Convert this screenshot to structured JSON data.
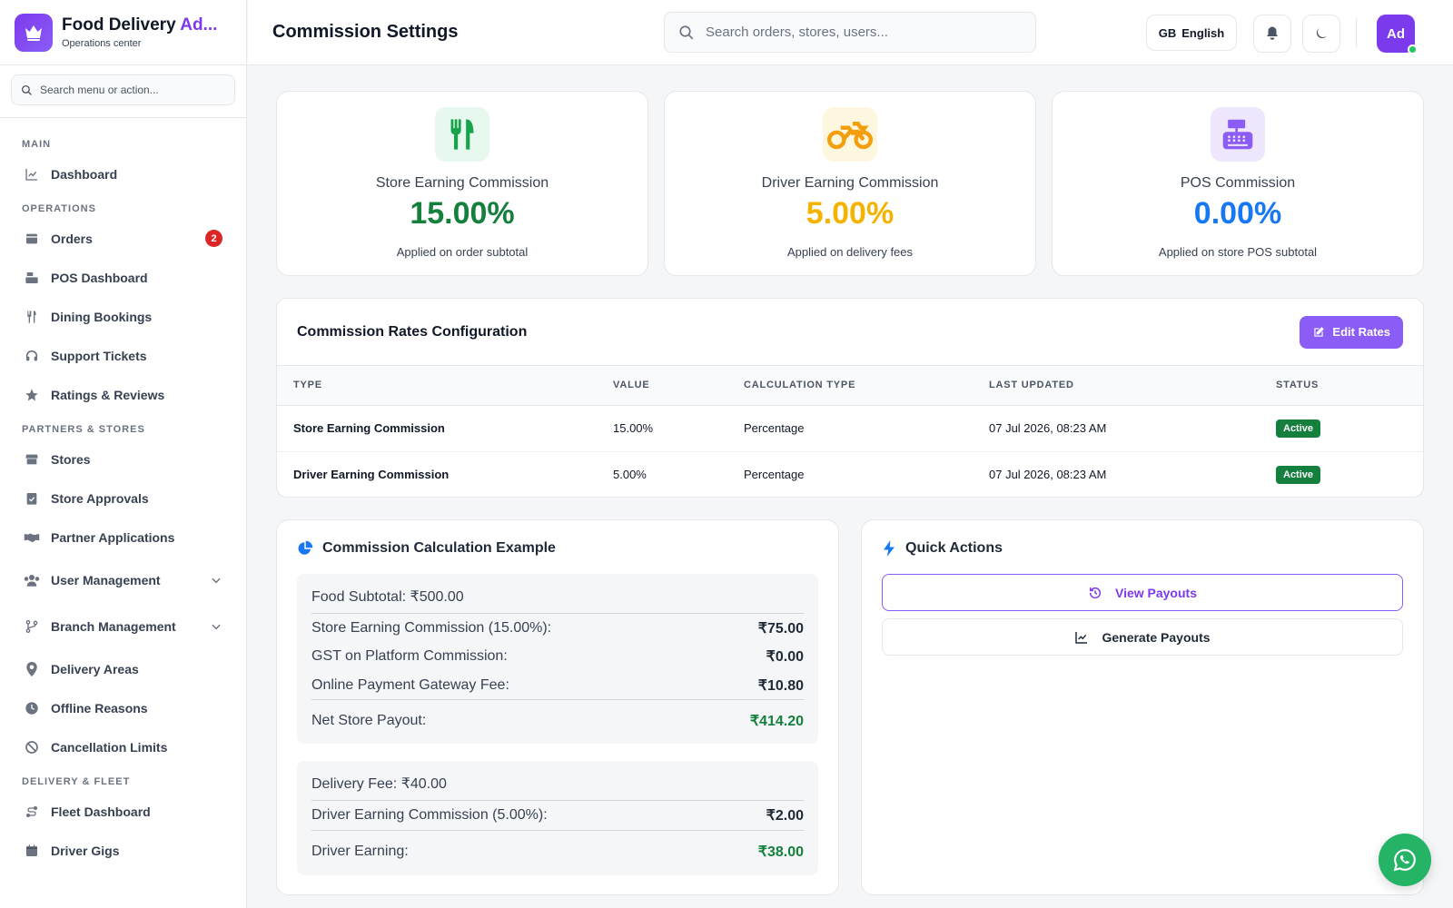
{
  "brand": {
    "title_main": "Food Delivery ",
    "title_accent": "Ad...",
    "subtitle": "Operations center"
  },
  "menu_search": {
    "placeholder": "Search menu or action..."
  },
  "nav": {
    "main": "MAIN",
    "dashboard": "Dashboard",
    "operations": "OPERATIONS",
    "orders": "Orders",
    "orders_badge": "2",
    "pos_dashboard": "POS Dashboard",
    "dining_bookings": "Dining Bookings",
    "support_tickets": "Support Tickets",
    "ratings_reviews": "Ratings & Reviews",
    "partners_stores": "PARTNERS & STORES",
    "stores": "Stores",
    "store_approvals": "Store Approvals",
    "partner_applications": "Partner Applications",
    "user_management": "User Management",
    "branch_management": "Branch Management",
    "delivery_areas": "Delivery Areas",
    "offline_reasons": "Offline Reasons",
    "cancellation_limits": "Cancellation Limits",
    "delivery_fleet": "DELIVERY & FLEET",
    "fleet_dashboard": "Fleet Dashboard",
    "driver_gigs": "Driver Gigs"
  },
  "header": {
    "title": "Commission Settings",
    "search_placeholder": "Search orders, stores, users...",
    "lang_code": "GB",
    "lang_label": "English",
    "avatar_initials": "Ad"
  },
  "stats": [
    {
      "label": "Store Earning Commission",
      "value": "15.00%",
      "note": "Applied on order subtotal",
      "color": "#15803d"
    },
    {
      "label": "Driver Earning Commission",
      "value": "5.00%",
      "note": "Applied on delivery fees",
      "color": "#f5b301"
    },
    {
      "label": "POS Commission",
      "value": "0.00%",
      "note": "Applied on store POS subtotal",
      "color": "#1877f2"
    }
  ],
  "rates": {
    "title": "Commission Rates Configuration",
    "edit_label": "Edit Rates",
    "columns": [
      "TYPE",
      "VALUE",
      "CALCULATION TYPE",
      "LAST UPDATED",
      "STATUS"
    ],
    "rows": [
      {
        "type": "Store Earning Commission",
        "value": "15.00%",
        "calc": "Percentage",
        "updated": "07 Jul 2026, 08:23 AM",
        "status": "Active"
      },
      {
        "type": "Driver Earning Commission",
        "value": "5.00%",
        "calc": "Percentage",
        "updated": "07 Jul 2026, 08:23 AM",
        "status": "Active"
      }
    ]
  },
  "calc": {
    "title": "Commission Calculation Example",
    "food_subtotal": "Food Subtotal: ₹500.00",
    "store_commission_label": "Store Earning Commission (15.00%):",
    "store_commission_amt": "₹75.00",
    "gst_label": "GST on Platform Commission:",
    "gst_amt": "₹0.00",
    "gateway_label": "Online Payment Gateway Fee:",
    "gateway_amt": "₹10.80",
    "net_store_label": "Net Store Payout:",
    "net_store_amt": "₹414.20",
    "delivery_fee": "Delivery Fee: ₹40.00",
    "driver_commission_label": "Driver Earning Commission (5.00%):",
    "driver_commission_amt": "₹2.00",
    "driver_earning_label": "Driver Earning:",
    "driver_earning_amt": "₹38.00"
  },
  "quick_actions": {
    "title": "Quick Actions",
    "view_payouts": "View Payouts",
    "generate_payouts": "Generate Payouts"
  },
  "colors": {
    "accent": "#7c3aed",
    "success": "#15803d",
    "danger": "#dc2626",
    "whatsapp": "#25b366"
  }
}
